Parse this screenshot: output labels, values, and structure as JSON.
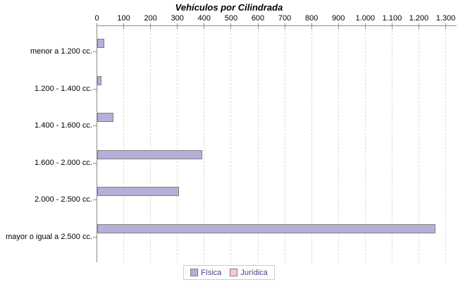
{
  "title": "Vehículos por Cilindrada",
  "chart_data": {
    "type": "bar",
    "orientation": "horizontal",
    "title": "Vehículos por Cilindrada",
    "categories": [
      "menor a 1.200 cc.",
      "1.200 - 1.400 cc.",
      "1.400 - 1.600 cc.",
      "1.600 - 2.000 cc.",
      "2.000 - 2.500 cc.",
      "mayor o igual a 2.500 cc."
    ],
    "series": [
      {
        "name": "Física",
        "color": "#b7aeda",
        "values": [
          25,
          15,
          60,
          390,
          305,
          1260
        ]
      },
      {
        "name": "Jurídica",
        "color": "#f9caca",
        "values": [
          0,
          0,
          0,
          0,
          0,
          0
        ]
      }
    ],
    "xlim": [
      0,
      1300
    ],
    "x_tick_step": 100,
    "x_tick_labels": [
      "0",
      "100",
      "200",
      "300",
      "400",
      "500",
      "600",
      "700",
      "800",
      "900",
      "1.000",
      "1.100",
      "1.200",
      "1.300"
    ],
    "grid": "vertical-dashed",
    "axis_position": "top",
    "legend_position": "bottom-center"
  },
  "legend": {
    "items": [
      {
        "label": "Física",
        "color": "#b7aeda"
      },
      {
        "label": "Jurídica",
        "color": "#f9caca"
      }
    ]
  },
  "colors": {
    "bar_border": "#7f7f7f",
    "axis": "#8c8c8c",
    "gridline": "#d9d9d9",
    "legend_border": "#cccccc",
    "legend_text": "#483d8b",
    "title_text": "#000000",
    "background": "#ffffff"
  }
}
